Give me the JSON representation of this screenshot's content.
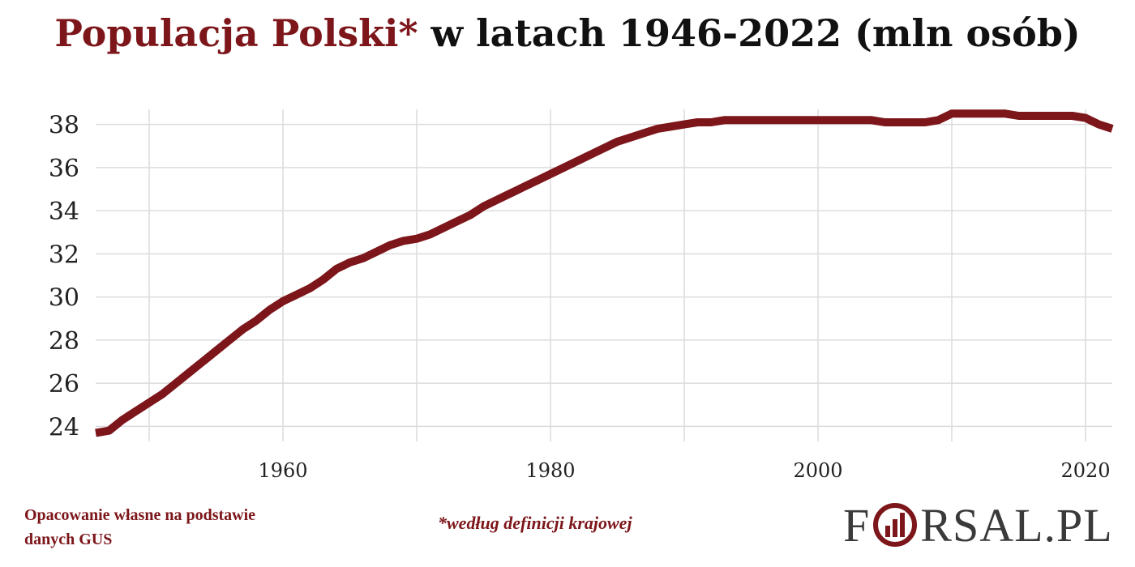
{
  "title": {
    "accent": "Populacja Polski*",
    "rest": " w latach 1946-2022 (mln osób)"
  },
  "footer": {
    "source": "Opacowanie własne na podstawie danych GUS",
    "footnote": "*według definicji krajowej",
    "logo_left": "F",
    "logo_right": "RSAL.PL"
  },
  "colors": {
    "accent": "#7d161a",
    "line": "#7d161a",
    "grid": "#dcdcdc",
    "logo_gray": "#3a3a3a"
  },
  "chart_data": {
    "type": "line",
    "title": "Populacja Polski* w latach 1946-2022 (mln osób)",
    "xlabel": "",
    "ylabel": "",
    "xlim": [
      1946,
      2022
    ],
    "ylim": [
      23.3,
      38.7
    ],
    "xticks": [
      1960,
      1980,
      2000,
      2020
    ],
    "yticks": [
      24,
      26,
      28,
      30,
      32,
      34,
      36,
      38
    ],
    "grid": true,
    "series": [
      {
        "x": [
          1946,
          1947,
          1948,
          1949,
          1950,
          1951,
          1952,
          1953,
          1954,
          1955,
          1956,
          1957,
          1958,
          1959,
          1960,
          1961,
          1962,
          1963,
          1964,
          1965,
          1966,
          1967,
          1968,
          1969,
          1970,
          1971,
          1972,
          1973,
          1974,
          1975,
          1976,
          1977,
          1978,
          1979,
          1980,
          1981,
          1982,
          1983,
          1984,
          1985,
          1986,
          1987,
          1988,
          1989,
          1990,
          1991,
          1992,
          1993,
          1994,
          1995,
          1996,
          1997,
          1998,
          1999,
          2000,
          2001,
          2002,
          2003,
          2004,
          2005,
          2006,
          2007,
          2008,
          2009,
          2010,
          2011,
          2012,
          2013,
          2014,
          2015,
          2016,
          2017,
          2018,
          2019,
          2020,
          2021,
          2022
        ],
        "values": [
          23.7,
          23.8,
          24.3,
          24.7,
          25.1,
          25.5,
          26.0,
          26.5,
          27.0,
          27.5,
          28.0,
          28.5,
          28.9,
          29.4,
          29.8,
          30.1,
          30.4,
          30.8,
          31.3,
          31.6,
          31.8,
          32.1,
          32.4,
          32.6,
          32.7,
          32.9,
          33.2,
          33.5,
          33.8,
          34.2,
          34.5,
          34.8,
          35.1,
          35.4,
          35.7,
          36.0,
          36.3,
          36.6,
          36.9,
          37.2,
          37.4,
          37.6,
          37.8,
          37.9,
          38.0,
          38.1,
          38.1,
          38.2,
          38.2,
          38.2,
          38.2,
          38.2,
          38.2,
          38.2,
          38.2,
          38.2,
          38.2,
          38.2,
          38.2,
          38.1,
          38.1,
          38.1,
          38.1,
          38.2,
          38.5,
          38.5,
          38.5,
          38.5,
          38.5,
          38.4,
          38.4,
          38.4,
          38.4,
          38.4,
          38.3,
          38.0,
          37.8
        ]
      }
    ]
  }
}
